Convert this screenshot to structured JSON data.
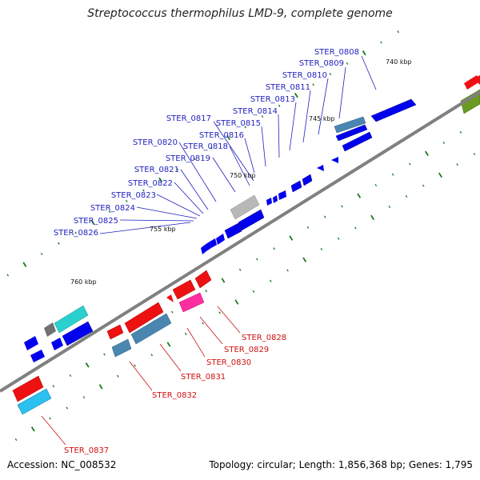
{
  "title": "Streptococcus thermophilus LMD-9, complete genome",
  "footer": {
    "accession": "Accession: NC_008532",
    "topology": "Topology: circular; Length: 1,856,368 bp; Genes: 1,795"
  },
  "colors": {
    "backbone": "#808080",
    "tick": "#1a7a1a",
    "label_blue": "#1f1fbf",
    "label_red": "#d01010",
    "gene_blue": "#0000ee",
    "gene_red": "#ee1111",
    "gene_grey": "#b8b8b8",
    "gene_teal": "#4a86b0",
    "gene_cyan": "#2ad0d0",
    "gene_pink": "#ff2ea0",
    "gene_olive": "#6a9a20"
  },
  "scale_labels": [
    "740 kbp",
    "745 kbp",
    "750 kbp",
    "755 kbp",
    "760 kbp"
  ],
  "upper_labels": [
    "STER_0808",
    "STER_0809",
    "STER_0810",
    "STER_0811",
    "STER_0813",
    "STER_0814",
    "STER_0815",
    "STER_0816",
    "STER_0817",
    "STER_0818",
    "STER_0819",
    "STER_0820",
    "STER_0821",
    "STER_0822",
    "STER_0823",
    "STER_0824",
    "STER_0825",
    "STER_0826"
  ],
  "lower_labels": [
    "STER_0828",
    "STER_0829",
    "STER_0830",
    "STER_0831",
    "STER_0832",
    "STER_0837"
  ]
}
